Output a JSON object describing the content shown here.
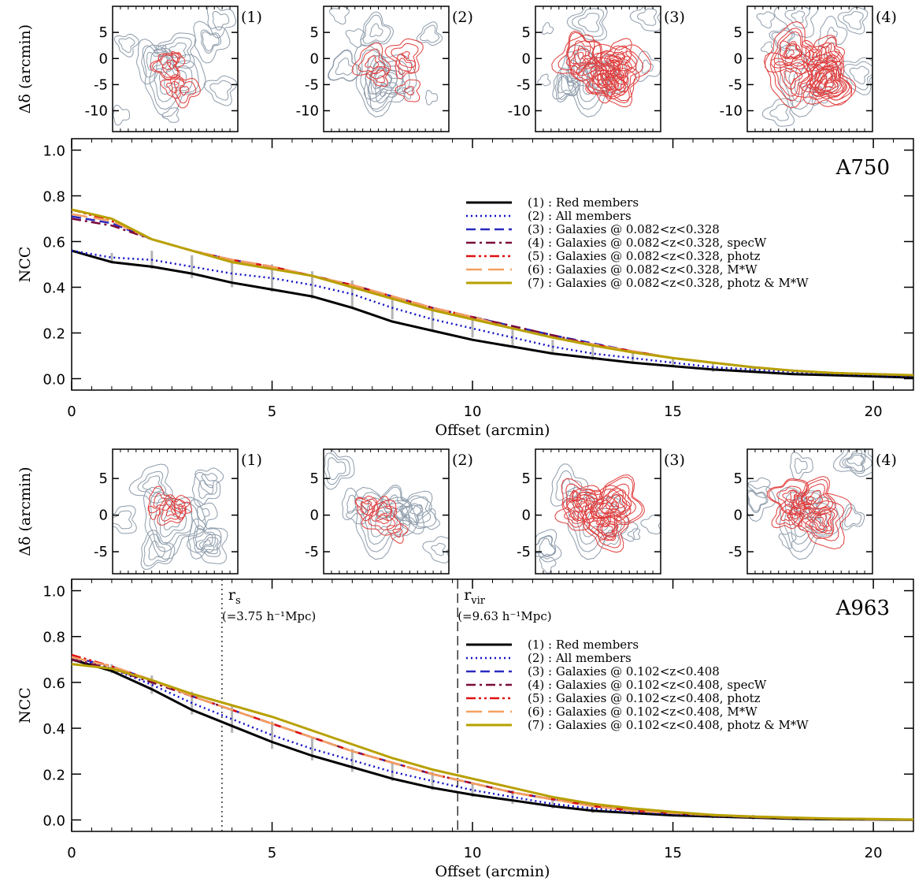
{
  "chart_data": [
    {
      "type": "line",
      "annotation": "A750",
      "xlabel": "Offset (arcmin)",
      "ylabel": "NCC",
      "xlim": [
        0,
        21
      ],
      "xticks": [
        0,
        5,
        10,
        15,
        20
      ],
      "ylim": [
        -0.05,
        1.05
      ],
      "yticks": [
        {
          "value": 0,
          "label": "0.0"
        },
        0.2,
        0.4,
        0.6,
        0.8,
        {
          "value": 1,
          "label": "1.0"
        }
      ],
      "errorbar_color": "#b4b4b4",
      "x": [
        0,
        1,
        2,
        3,
        4,
        5,
        6,
        7,
        8,
        9,
        10,
        11,
        12,
        13,
        14,
        15,
        16,
        17,
        18,
        19,
        20,
        21
      ],
      "series": [
        {
          "name": "(1) : Red members",
          "color": "#000000",
          "dash": "solid",
          "values": [
            0.56,
            0.51,
            0.49,
            0.46,
            0.42,
            0.39,
            0.36,
            0.31,
            0.25,
            0.21,
            0.17,
            0.14,
            0.11,
            0.09,
            0.07,
            0.055,
            0.04,
            0.03,
            0.02,
            0.015,
            0.01,
            0.005
          ]
        },
        {
          "name": "(2) : All members",
          "color": "#1010c8",
          "dash": "dotted",
          "values": [
            0.56,
            0.53,
            0.52,
            0.49,
            0.46,
            0.44,
            0.41,
            0.37,
            0.31,
            0.26,
            0.22,
            0.18,
            0.14,
            0.11,
            0.09,
            0.07,
            0.05,
            0.04,
            0.03,
            0.02,
            0.015,
            0.01
          ],
          "errors": [
            null,
            0.02,
            0.04,
            0.05,
            0.06,
            0.06,
            0.06,
            0.06,
            0.05,
            0.05,
            0.04,
            0.04,
            0.03,
            0.03,
            0.025,
            0.02,
            0.02,
            0.015,
            0.01,
            0.01,
            0.01,
            0.01
          ]
        },
        {
          "name": "(3) : Galaxies @ 0.082<z<0.328",
          "color": "#2a2ac0",
          "dash": "dashed",
          "values": [
            0.71,
            0.68,
            0.61,
            0.56,
            0.52,
            0.49,
            0.45,
            0.41,
            0.36,
            0.31,
            0.27,
            0.23,
            0.19,
            0.155,
            0.12,
            0.09,
            0.07,
            0.05,
            0.035,
            0.025,
            0.02,
            0.015
          ]
        },
        {
          "name": "(4) : Galaxies @ 0.082<z<0.328, specW",
          "color": "#7a0a3a",
          "dash": "dashdot",
          "values": [
            0.7,
            0.67,
            0.61,
            0.56,
            0.52,
            0.49,
            0.45,
            0.41,
            0.36,
            0.31,
            0.27,
            0.23,
            0.19,
            0.15,
            0.12,
            0.09,
            0.07,
            0.05,
            0.035,
            0.025,
            0.02,
            0.015
          ]
        },
        {
          "name": "(5) : Galaxies @ 0.082<z<0.328, photz",
          "color": "#e01010",
          "dash": "dashdotdot",
          "values": [
            0.74,
            0.69,
            0.61,
            0.56,
            0.52,
            0.49,
            0.45,
            0.41,
            0.36,
            0.31,
            0.27,
            0.22,
            0.18,
            0.15,
            0.12,
            0.09,
            0.07,
            0.05,
            0.035,
            0.025,
            0.02,
            0.015
          ]
        },
        {
          "name": "(6) : Galaxies @ 0.082<z<0.328, M*W",
          "color": "#f5a060",
          "dash": "longdash",
          "values": [
            0.72,
            0.69,
            0.61,
            0.56,
            0.52,
            0.49,
            0.45,
            0.41,
            0.36,
            0.31,
            0.27,
            0.22,
            0.18,
            0.15,
            0.12,
            0.09,
            0.07,
            0.05,
            0.035,
            0.025,
            0.02,
            0.015
          ]
        },
        {
          "name": "(7) : Galaxies @ 0.082<z<0.328, photz & M*W",
          "color": "#b8a000",
          "dash": "solid",
          "values": [
            0.74,
            0.7,
            0.61,
            0.56,
            0.51,
            0.48,
            0.45,
            0.4,
            0.35,
            0.3,
            0.26,
            0.22,
            0.18,
            0.145,
            0.115,
            0.09,
            0.07,
            0.05,
            0.035,
            0.025,
            0.02,
            0.015
          ]
        }
      ],
      "insets": {
        "ylabel": "Δδ (arcmin)",
        "ylim": [
          -14,
          10
        ],
        "yticks": [
          5,
          0,
          -5,
          -10
        ],
        "labels": [
          "(1)",
          "(2)",
          "(3)",
          "(4)"
        ]
      }
    },
    {
      "type": "line",
      "annotation": "A963",
      "xlabel": "Offset (arcmin)",
      "ylabel": "NCC",
      "xlim": [
        0,
        21
      ],
      "xticks": [
        0,
        5,
        10,
        15,
        20
      ],
      "ylim": [
        -0.05,
        1.05
      ],
      "yticks": [
        {
          "value": 0,
          "label": "0.0"
        },
        0.2,
        0.4,
        0.6,
        0.8,
        {
          "value": 1,
          "label": "1.0"
        }
      ],
      "errorbar_color": "#b4b4b4",
      "x": [
        0,
        1,
        2,
        3,
        4,
        5,
        6,
        7,
        8,
        9,
        10,
        11,
        12,
        13,
        14,
        15,
        16,
        17,
        18,
        19,
        20,
        21
      ],
      "series": [
        {
          "name": "(1) : Red members",
          "color": "#000000",
          "dash": "solid",
          "values": [
            0.7,
            0.65,
            0.57,
            0.48,
            0.41,
            0.34,
            0.28,
            0.23,
            0.18,
            0.14,
            0.11,
            0.085,
            0.06,
            0.04,
            0.03,
            0.02,
            0.015,
            0.01,
            0.005,
            0.003,
            0.002,
            0.001
          ]
        },
        {
          "name": "(2) : All members",
          "color": "#1010c8",
          "dash": "dotted",
          "values": [
            0.71,
            0.66,
            0.59,
            0.51,
            0.44,
            0.37,
            0.31,
            0.26,
            0.21,
            0.17,
            0.13,
            0.1,
            0.07,
            0.05,
            0.035,
            0.025,
            0.018,
            0.012,
            0.008,
            0.005,
            0.003,
            0.002
          ],
          "errors": [
            null,
            0.02,
            0.04,
            0.05,
            0.06,
            0.06,
            0.05,
            0.05,
            0.04,
            0.04,
            0.03,
            0.03,
            0.02,
            0.02,
            0.015,
            0.01,
            0.01,
            0.01,
            0.005,
            0.005,
            0.005,
            0.005
          ]
        },
        {
          "name": "(3) : Galaxies @ 0.102<z<0.408",
          "color": "#2a2ac0",
          "dash": "dashed",
          "values": [
            0.71,
            0.67,
            0.61,
            0.54,
            0.48,
            0.42,
            0.36,
            0.3,
            0.25,
            0.2,
            0.16,
            0.12,
            0.09,
            0.065,
            0.045,
            0.03,
            0.02,
            0.014,
            0.009,
            0.006,
            0.004,
            0.002
          ]
        },
        {
          "name": "(4) : Galaxies @ 0.102<z<0.408, specW",
          "color": "#7a0a3a",
          "dash": "dashdot",
          "values": [
            0.7,
            0.66,
            0.6,
            0.54,
            0.48,
            0.42,
            0.36,
            0.3,
            0.25,
            0.2,
            0.16,
            0.12,
            0.09,
            0.065,
            0.045,
            0.03,
            0.02,
            0.014,
            0.009,
            0.006,
            0.004,
            0.002
          ]
        },
        {
          "name": "(5) : Galaxies @ 0.102<z<0.408, photz",
          "color": "#e01010",
          "dash": "dashdotdot",
          "values": [
            0.72,
            0.67,
            0.61,
            0.54,
            0.48,
            0.42,
            0.36,
            0.3,
            0.25,
            0.2,
            0.16,
            0.12,
            0.09,
            0.06,
            0.04,
            0.03,
            0.02,
            0.013,
            0.008,
            0.005,
            0.003,
            0.002
          ]
        },
        {
          "name": "(6) : Galaxies @ 0.102<z<0.408, M*W",
          "color": "#f5a060",
          "dash": "longdash",
          "values": [
            0.71,
            0.67,
            0.61,
            0.54,
            0.48,
            0.42,
            0.36,
            0.3,
            0.25,
            0.2,
            0.16,
            0.12,
            0.09,
            0.06,
            0.04,
            0.03,
            0.02,
            0.013,
            0.008,
            0.005,
            0.003,
            0.002
          ]
        },
        {
          "name": "(7) : Galaxies @ 0.102<z<0.408, photz & M*W",
          "color": "#b8a000",
          "dash": "solid",
          "values": [
            0.68,
            0.66,
            0.61,
            0.55,
            0.5,
            0.45,
            0.39,
            0.33,
            0.27,
            0.22,
            0.18,
            0.14,
            0.1,
            0.07,
            0.05,
            0.035,
            0.022,
            0.015,
            0.01,
            0.006,
            0.004,
            0.002
          ]
        }
      ],
      "vlines": [
        {
          "x": 3.75,
          "label": "r",
          "sub": "s",
          "note": "(=3.75 h⁻¹Mpc)",
          "dash": "dotted"
        },
        {
          "x": 9.63,
          "label": "r",
          "sub": "vir",
          "note": "(=9.63 h⁻¹Mpc)",
          "dash": "dashed"
        }
      ],
      "insets": {
        "ylabel": "Δδ (arcmin)",
        "ylim": [
          -8,
          9
        ],
        "yticks": [
          5,
          0,
          -5
        ],
        "labels": [
          "(1)",
          "(2)",
          "(3)",
          "(4)"
        ]
      }
    }
  ]
}
